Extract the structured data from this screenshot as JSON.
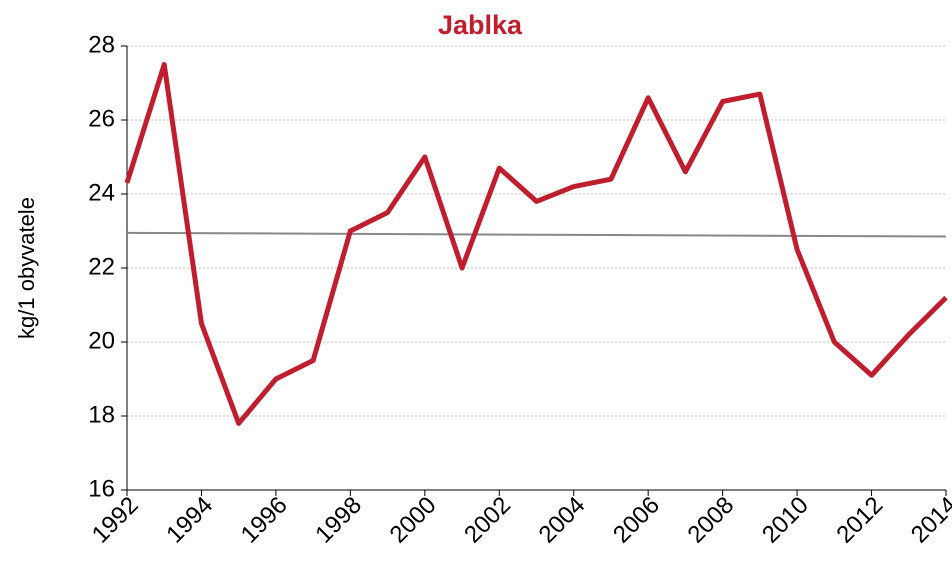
{
  "chart_data": {
    "type": "line",
    "title": "Jablka",
    "ylabel": "kg/1 obyvatele",
    "x": [
      1992,
      1993,
      1994,
      1995,
      1996,
      1997,
      1998,
      1999,
      2000,
      2001,
      2002,
      2003,
      2004,
      2005,
      2006,
      2007,
      2008,
      2009,
      2010,
      2011,
      2012,
      2013,
      2014
    ],
    "series": [
      {
        "name": "Jablka",
        "color": "#be1e2d",
        "values": [
          24.3,
          27.5,
          20.5,
          17.8,
          19.0,
          19.5,
          23.0,
          23.5,
          25.0,
          22.0,
          24.7,
          23.8,
          24.2,
          24.4,
          26.6,
          24.6,
          26.5,
          26.7,
          22.5,
          20.0,
          19.1,
          20.2,
          21.2
        ]
      }
    ],
    "trend": {
      "x": [
        1992,
        2014
      ],
      "values": [
        22.95,
        22.85
      ],
      "color": "#888888"
    },
    "xlim": [
      1992,
      2014
    ],
    "xticks": [
      1992,
      1994,
      1996,
      1998,
      2000,
      2002,
      2004,
      2006,
      2008,
      2010,
      2012,
      2014
    ],
    "ylim": [
      16,
      28
    ],
    "yticks": [
      16,
      18,
      20,
      22,
      24,
      26,
      28
    ],
    "grid": true
  }
}
